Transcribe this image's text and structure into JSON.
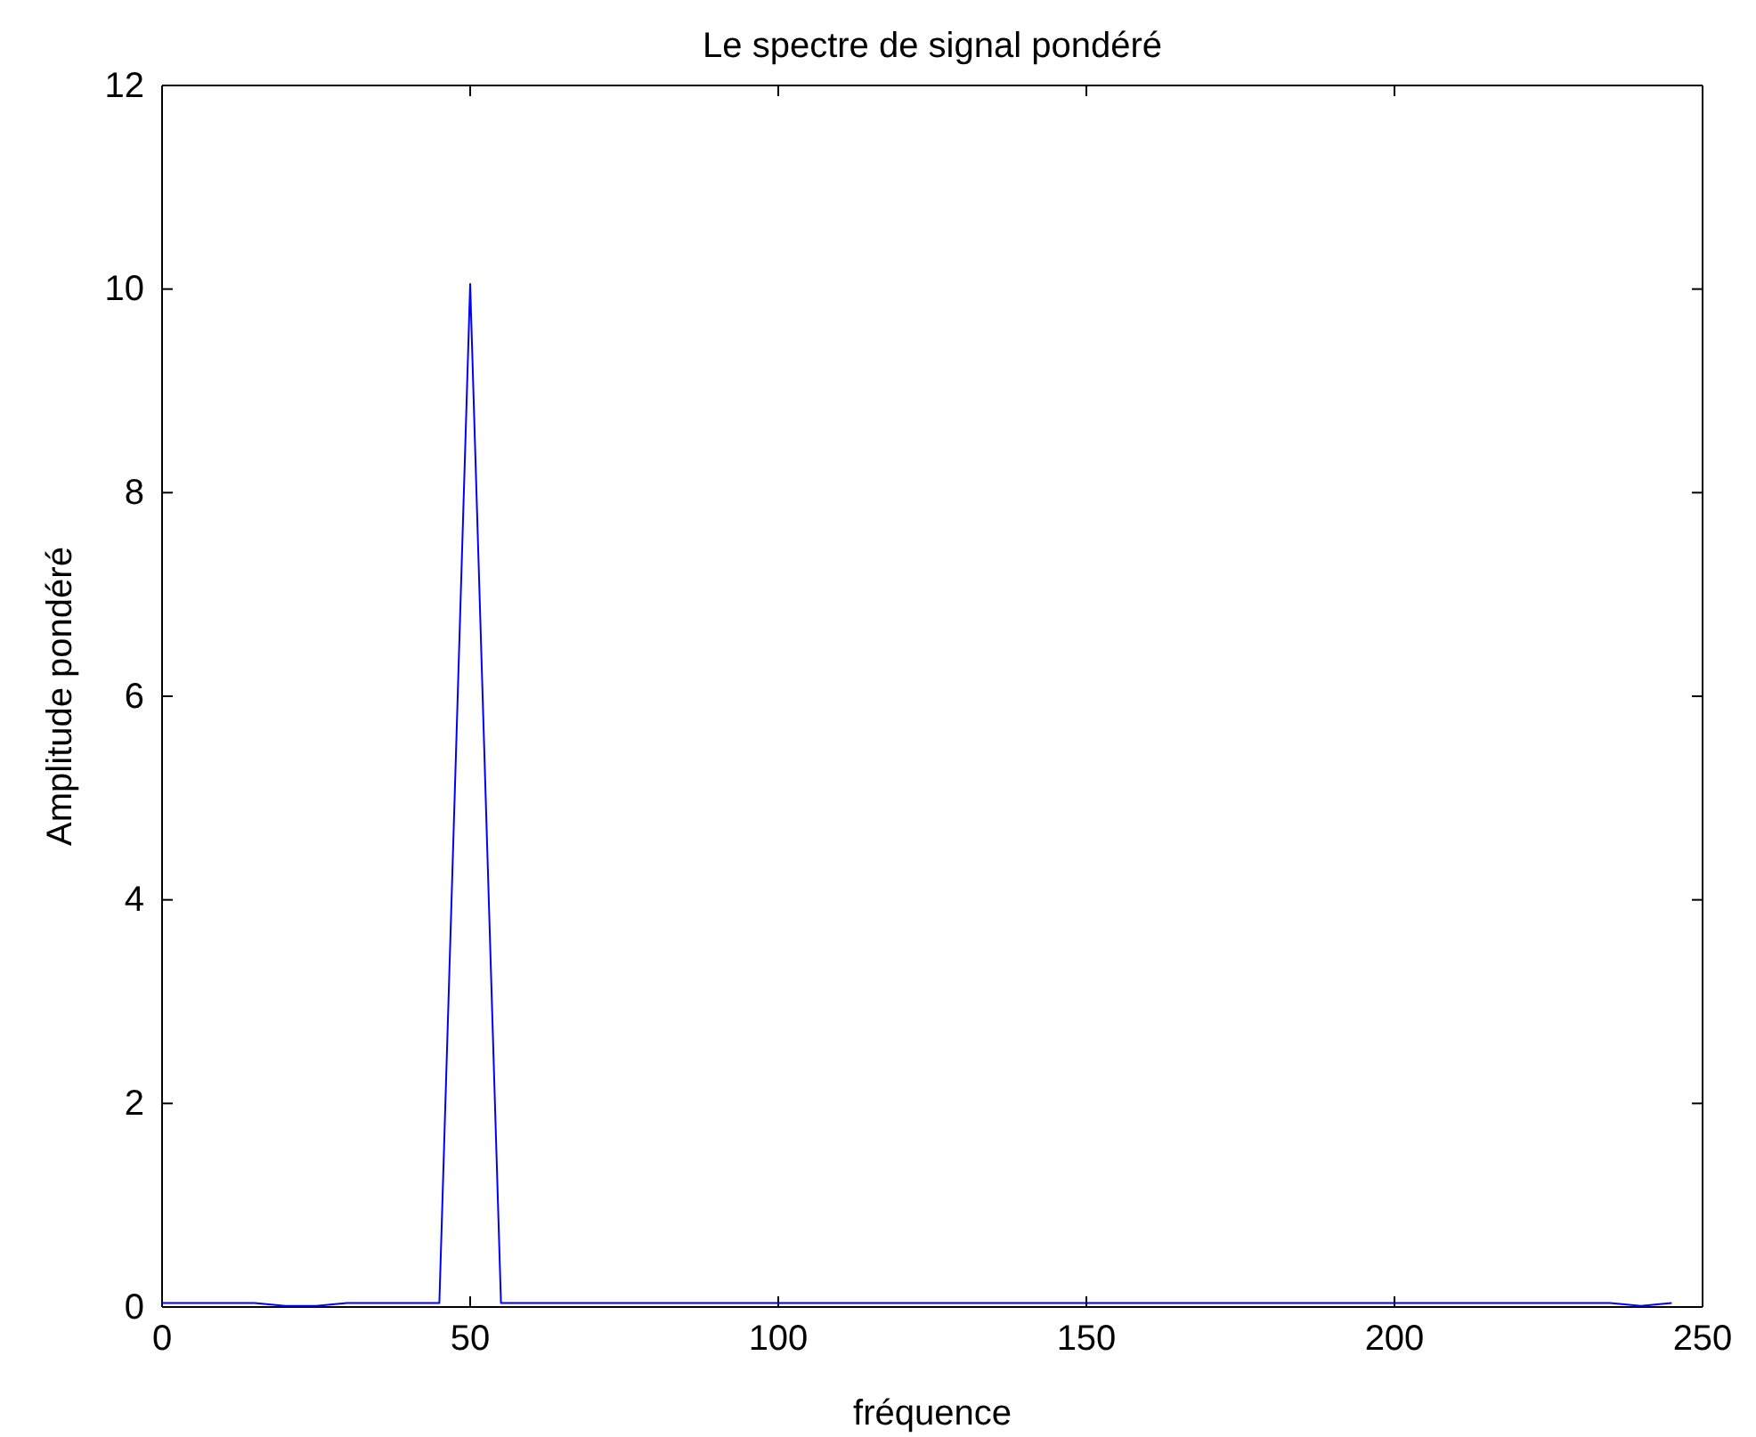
{
  "chart_data": {
    "type": "line",
    "title": "Le spectre de signal pondéré",
    "xlabel": "fréquence",
    "ylabel": "Amplitude pondéré",
    "x": [
      0,
      15,
      20,
      25,
      30,
      45,
      50,
      55,
      235,
      240,
      245
    ],
    "series": [
      {
        "color": "#0000ff",
        "values": [
          0.04,
          0.04,
          0.01,
          0.01,
          0.04,
          0.04,
          10.05,
          0.04,
          0.04,
          0.01,
          0.04
        ]
      }
    ],
    "xlim": [
      0,
      250
    ],
    "xticks": [
      0,
      50,
      100,
      150,
      200,
      250
    ],
    "ylim": [
      0,
      12
    ],
    "yticks": [
      0,
      2,
      4,
      6,
      8,
      10,
      12
    ],
    "grid": false,
    "marker": "none",
    "line_style": "solid"
  }
}
